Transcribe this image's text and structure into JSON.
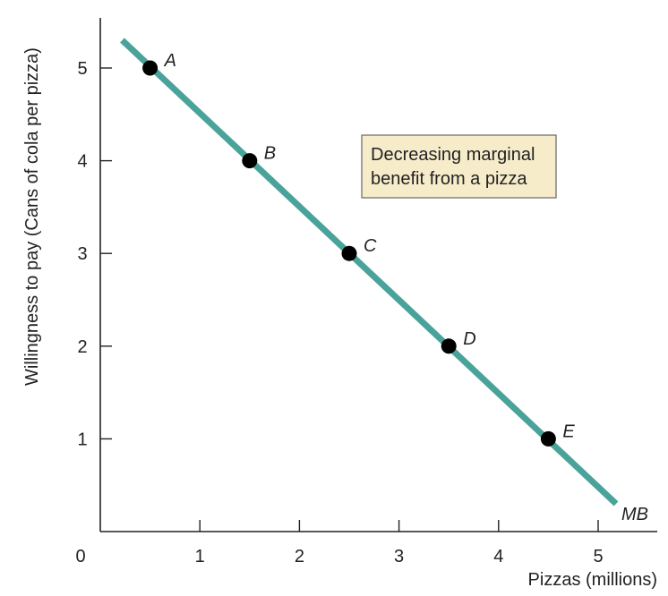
{
  "chart_data": {
    "type": "line",
    "xlabel": "Pizzas (millions)",
    "ylabel": "Willingness to pay (Cans of cola per pizza)",
    "origin_label": "0",
    "xlim": [
      0,
      5.6
    ],
    "ylim": [
      0,
      5.5
    ],
    "xticks": [
      1,
      2,
      3,
      4,
      5
    ],
    "yticks": [
      1,
      2,
      3,
      4,
      5
    ],
    "grid": false,
    "series": [
      {
        "name": "MB",
        "color": "#4aa39a",
        "line": {
          "x": [
            0.22,
            5.18
          ],
          "y": [
            5.3,
            0.3
          ]
        },
        "points": [
          {
            "label": "A",
            "x": 0.5,
            "y": 5
          },
          {
            "label": "B",
            "x": 1.5,
            "y": 4
          },
          {
            "label": "C",
            "x": 2.5,
            "y": 3
          },
          {
            "label": "D",
            "x": 3.5,
            "y": 2
          },
          {
            "label": "E",
            "x": 4.5,
            "y": 1
          }
        ]
      }
    ],
    "annotation": {
      "lines": [
        "Decreasing marginal",
        "benefit from a pizza"
      ],
      "fill": "#f7ecca",
      "border": "#666666"
    }
  }
}
